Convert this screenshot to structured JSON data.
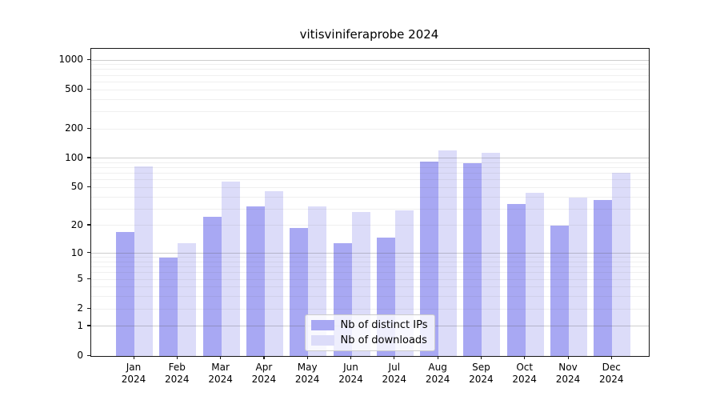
{
  "title": "vitisviniferaprobe 2024",
  "chart_data": {
    "type": "bar",
    "title": "vitisviniferaprobe 2024",
    "categories": [
      "Jan",
      "Feb",
      "Mar",
      "Apr",
      "May",
      "Jun",
      "Jul",
      "Aug",
      "Sep",
      "Oct",
      "Nov",
      "Dec"
    ],
    "category_year": "2024",
    "series": [
      {
        "name": "Nb of distinct IPs",
        "color": "#a8a8f3",
        "values": [
          17,
          9,
          25,
          32,
          19,
          13,
          15,
          92,
          89,
          34,
          20,
          37
        ]
      },
      {
        "name": "Nb of downloads",
        "color": "#dcdcf9",
        "values": [
          82,
          13,
          58,
          46,
          32,
          28,
          29,
          120,
          113,
          44,
          39,
          71
        ]
      }
    ],
    "yscale": "log1p",
    "ylim": [
      0,
      1300
    ],
    "yticks": [
      0,
      1,
      2,
      5,
      10,
      20,
      50,
      100,
      200,
      500,
      1000
    ],
    "major_gridlines": [
      1,
      10,
      100,
      1000
    ],
    "minor_gridlines": [
      2,
      3,
      4,
      5,
      6,
      7,
      8,
      9,
      20,
      30,
      40,
      50,
      60,
      70,
      80,
      90,
      200,
      300,
      400,
      500,
      600,
      700,
      800,
      900
    ],
    "grid": true,
    "legend_position": "lower center"
  }
}
